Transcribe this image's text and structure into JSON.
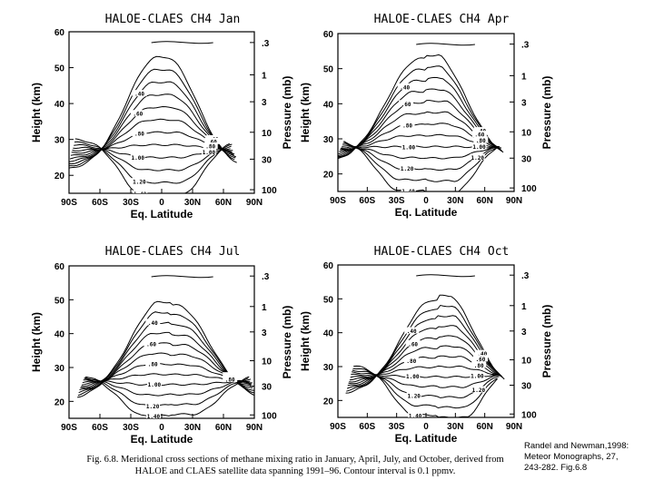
{
  "caption": {
    "fig_label": "Fig. 6.8.",
    "text": "Meridional cross sections of methane mixing ratio in January, April, July, and October, derived from HALOE and CLAES satellite data spanning 1991–96. Contour interval is 0.1 ppmv."
  },
  "citation": {
    "lines": [
      "Randel and Newman,1998:",
      "Meteor Monographs, 27,",
      "243-282. Fig.6.8"
    ]
  },
  "chart_data": [
    {
      "type": "contour",
      "title": "HALOE-CLAES  CH4  Jan",
      "xlabel": "Eq. Latitude",
      "ylabel_left": "Height (km)",
      "ylabel_right": "Pressure (mb)",
      "xlim": [
        -90,
        90
      ],
      "ylim": [
        15,
        60
      ],
      "x_ticks": [
        "90S",
        "60S",
        "30S",
        "0",
        "30N",
        "60N",
        "90N"
      ],
      "y_ticks": [
        "20",
        "30",
        "40",
        "50",
        "60"
      ],
      "pressure_ticks": [
        ".3",
        "1",
        "3",
        "10",
        "30",
        "100"
      ],
      "contour_interval_ppmv": 0.1,
      "contour_labels": [
        ".40",
        ".60",
        ".80",
        "1.00",
        "1.20",
        "1.40",
        ".40",
        ".60",
        ".80",
        "1.00"
      ],
      "peak_latitude": 0,
      "peak_height_km": 26
    },
    {
      "type": "contour",
      "title": "HALOE-CLAES  CH4  Apr",
      "xlabel": "Eq. Latitude",
      "ylabel_left": "Height (km)",
      "ylabel_right": "Pressure (mb)",
      "xlim": [
        -90,
        90
      ],
      "ylim": [
        15,
        60
      ],
      "x_ticks": [
        "90S",
        "60S",
        "30S",
        "0",
        "30N",
        "60N",
        "90N"
      ],
      "y_ticks": [
        "20",
        "30",
        "40",
        "50",
        "60"
      ],
      "pressure_ticks": [
        ".3",
        "1",
        "3",
        "10",
        "30",
        "100"
      ],
      "contour_interval_ppmv": 0.1,
      "contour_labels": [
        ".40",
        ".60",
        ".80",
        "1.00",
        "1.20",
        "1.40",
        ".40",
        ".60",
        ".80",
        "1.00",
        "1.20"
      ],
      "peak_latitude": 0,
      "peak_height_km": 26
    },
    {
      "type": "contour",
      "title": "HALOE-CLAES  CH4  Jul",
      "xlabel": "Eq. Latitude",
      "ylabel_left": "Height (km)",
      "ylabel_right": "Pressure (mb)",
      "xlim": [
        -90,
        90
      ],
      "ylim": [
        15,
        60
      ],
      "x_ticks": [
        "90S",
        "60S",
        "30S",
        "0",
        "30N",
        "60N",
        "90N"
      ],
      "y_ticks": [
        "20",
        "30",
        "40",
        "50",
        "60"
      ],
      "pressure_ticks": [
        ".3",
        "1",
        "3",
        "10",
        "30",
        "100"
      ],
      "contour_interval_ppmv": 0.1,
      "contour_labels": [
        ".40",
        ".60",
        ".80",
        "1.00",
        "1.20",
        "1.40",
        ".40",
        ".60",
        ".80"
      ],
      "peak_latitude": 0,
      "peak_height_km": 26
    },
    {
      "type": "contour",
      "title": "HALOE-CLAES  CH4  Oct",
      "xlabel": "Eq. Latitude",
      "ylabel_left": "Height (km)",
      "ylabel_right": "Pressure (mb)",
      "xlim": [
        -90,
        90
      ],
      "ylim": [
        15,
        60
      ],
      "x_ticks": [
        "90S",
        "60S",
        "30S",
        "0",
        "30N",
        "60N",
        "90N"
      ],
      "y_ticks": [
        "20",
        "30",
        "40",
        "50",
        "60"
      ],
      "pressure_ticks": [
        ".3",
        "1",
        "3",
        "10",
        "30",
        "100"
      ],
      "contour_interval_ppmv": 0.1,
      "contour_labels": [
        ".40",
        ".60",
        ".80",
        "1.00",
        "1.20",
        "1.40",
        ".40",
        ".60",
        ".80",
        "1.00",
        "1.20"
      ],
      "peak_latitude": 0,
      "peak_height_km": 24
    }
  ]
}
